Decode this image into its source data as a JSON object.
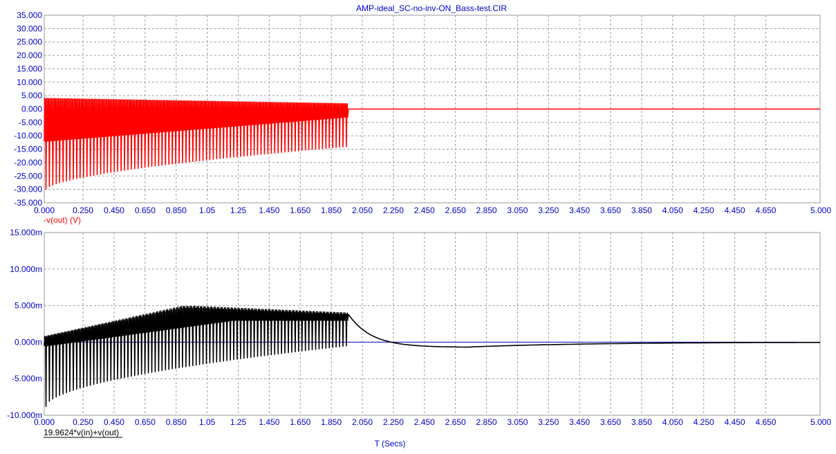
{
  "window_title": "AMP-ideal_SC-no-inv-ON_Bass-test.CIR",
  "x_axis_label": "T (Secs)",
  "colors": {
    "axis_text": "#0000cc",
    "grid": "#9a9a9a",
    "frame": "#9a9a9a",
    "zero_line": "#0000aa",
    "trace_top": "#ff0000",
    "trace_bottom": "#000000",
    "background": "#ffffff"
  },
  "chart_data": [
    {
      "type": "line",
      "series": [
        {
          "name": "-v(out) (V)",
          "color": "#ff0000"
        }
      ],
      "xlim": [
        0,
        5
      ],
      "ylim": [
        -35,
        35
      ],
      "x_ticks": [
        "0.000",
        "0.250",
        "0.450",
        "0.650",
        "0.850",
        "1.05",
        "1.25",
        "1.450",
        "1.650",
        "1.850",
        "2.050",
        "2.250",
        "2.450",
        "2.650",
        "2.850",
        "3.050",
        "3.250",
        "3.450",
        "3.650",
        "3.850",
        "4.050",
        "4.250",
        "4.450",
        "4.650",
        "5.000"
      ],
      "y_ticks": [
        "35.000",
        "30.000",
        "25.000",
        "20.000",
        "15.000",
        "10.000",
        "5.000",
        "0.000",
        "-5.000",
        "-10.000",
        "-15.000",
        "-20.000",
        "-25.000",
        "-30.000",
        "-35.000"
      ],
      "burst": {
        "t_start": 0,
        "t_end": 1.96,
        "upper_start": 4.0,
        "upper_end": 2.0,
        "lower_start": -30.0,
        "lower_end": -14.0,
        "valley_start": -12.0,
        "valley_end": -3.0,
        "period": 0.022
      },
      "tail": {
        "t_start": 1.96,
        "t_end": 5.0,
        "value": 0.0
      },
      "grid": true
    },
    {
      "type": "line",
      "series": [
        {
          "name": "19.9624*v(in)+v(out)",
          "color": "#000000"
        }
      ],
      "xlim": [
        0,
        5
      ],
      "ylim": [
        -0.01,
        0.015
      ],
      "x_ticks": [
        "0.000",
        "0.250",
        "0.450",
        "0.650",
        "0.850",
        "1.05",
        "1.25",
        "1.450",
        "1.650",
        "1.850",
        "2.050",
        "2.250",
        "2.450",
        "2.650",
        "2.850",
        "3.050",
        "3.250",
        "3.450",
        "3.650",
        "3.850",
        "4.050",
        "4.250",
        "4.450",
        "4.650",
        "5.000"
      ],
      "y_ticks": [
        "15.000m",
        "10.000m",
        "5.000m",
        "0.000m",
        "-5.000m",
        "-10.000m"
      ],
      "burst": {
        "t_start": 0,
        "t_end": 1.96,
        "upper_start": 0.0008,
        "upper_peak": 0.0049,
        "upper_end": 0.004,
        "lower_start": -0.0088,
        "lower_end": -0.0005,
        "mid_start": -0.0005,
        "mid_end": 0.003,
        "period": 0.022
      },
      "tail": {
        "t_start": 1.96,
        "v0": 0.0038,
        "v_min": -0.0007,
        "t_min": 2.7,
        "t_end": 5.0,
        "v_end": 0.0
      },
      "grid": true
    }
  ]
}
